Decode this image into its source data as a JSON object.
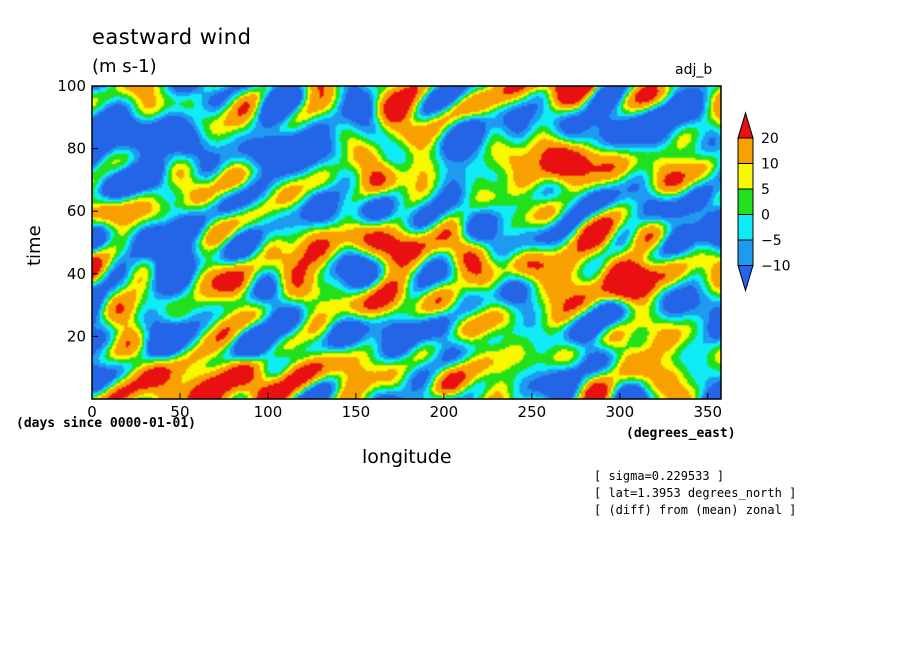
{
  "chart_data": {
    "type": "heatmap",
    "title": "eastward wind",
    "units": "(m s-1)",
    "tag": "adj_b",
    "xlabel": "longitude",
    "xunits": "(degrees_east)",
    "ylabel": "time",
    "yunits": "(days since 0000-01-01)",
    "xlim": [
      0,
      357.5
    ],
    "ylim": [
      0,
      100
    ],
    "xticks": [
      0,
      50,
      100,
      150,
      200,
      250,
      300,
      350
    ],
    "yticks": [
      20,
      40,
      60,
      80,
      100
    ],
    "colorbar": {
      "levels": [
        -10,
        -5,
        0,
        5,
        10,
        20
      ],
      "colors": [
        "#2464e6",
        "#1e9bf0",
        "#10ecf6",
        "#22e01c",
        "#f8f800",
        "#f8a000",
        "#e81010"
      ],
      "labels": [
        "20",
        "10",
        "5",
        "0",
        "−5",
        "−10"
      ]
    },
    "field_description": "zonally-varying anomaly field, mostly between -10 and 10, with eastward-tilting streaks and occasional 20+ maxima"
  },
  "notes": [
    "[ sigma=0.229533 ]",
    "[ lat=1.3953 degrees_north ]",
    "[ (diff) from (mean) zonal ]"
  ]
}
